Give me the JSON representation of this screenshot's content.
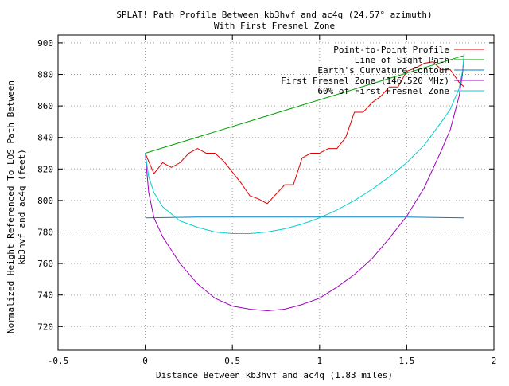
{
  "chart_data": {
    "type": "line",
    "title": "SPLAT! Path Profile Between kb3hvf and ac4q (24.57° azimuth)",
    "subtitle": "With First Fresnel Zone",
    "xlabel": "Distance Between kb3hvf and ac4q (1.83 miles)",
    "ylabel_line1": "Normalized Height Referenced To LOS Path Between",
    "ylabel_line2": "kb3hvf and ac4q (feet)",
    "xlim": [
      -0.5,
      2
    ],
    "ylim": [
      705,
      905
    ],
    "x_ticks": [
      -0.5,
      0,
      0.5,
      1,
      1.5,
      2
    ],
    "x_tick_labels": [
      "-0.5",
      "0",
      "0.5",
      "1",
      "1.5",
      "2"
    ],
    "y_ticks": [
      720,
      740,
      760,
      780,
      800,
      820,
      840,
      860,
      880,
      900
    ],
    "y_tick_labels": [
      "720",
      "740",
      "760",
      "780",
      "800",
      "820",
      "840",
      "860",
      "880",
      "900"
    ],
    "grid": true,
    "legend_position": "top-right",
    "series": [
      {
        "name": "Point-to-Point Profile",
        "color": "#e00000",
        "x": [
          0,
          0.05,
          0.1,
          0.15,
          0.2,
          0.25,
          0.3,
          0.35,
          0.4,
          0.45,
          0.5,
          0.55,
          0.6,
          0.65,
          0.7,
          0.75,
          0.8,
          0.85,
          0.9,
          0.95,
          1.0,
          1.05,
          1.1,
          1.15,
          1.2,
          1.25,
          1.3,
          1.35,
          1.4,
          1.45,
          1.5,
          1.55,
          1.6,
          1.65,
          1.7,
          1.75,
          1.8,
          1.83
        ],
        "y": [
          830,
          817,
          824,
          821,
          824,
          830,
          833,
          830,
          830,
          825,
          818,
          811,
          803,
          801,
          798,
          804,
          810,
          810,
          827,
          830,
          830,
          833,
          833,
          840,
          856,
          856,
          862,
          866,
          872,
          872,
          882,
          884,
          887,
          888,
          883,
          883,
          875,
          872
        ]
      },
      {
        "name": "Line of Sight Path",
        "color": "#00a000",
        "x": [
          0,
          1.83
        ],
        "y": [
          830,
          892
        ]
      },
      {
        "name": "Earth's Curvature Contour",
        "color": "#0080c0",
        "x": [
          0,
          0.3,
          0.6,
          0.9,
          1.2,
          1.5,
          1.83
        ],
        "y": [
          789,
          789.5,
          789.5,
          789.5,
          789.5,
          789.5,
          789
        ]
      },
      {
        "name": "First Fresnel Zone (146.520 MHz)",
        "color": "#a000c0",
        "x": [
          0,
          0.02,
          0.05,
          0.1,
          0.2,
          0.3,
          0.4,
          0.5,
          0.6,
          0.7,
          0.8,
          0.9,
          1.0,
          1.1,
          1.2,
          1.3,
          1.4,
          1.5,
          1.6,
          1.7,
          1.75,
          1.8,
          1.82,
          1.83
        ],
        "y": [
          830,
          805,
          789,
          777,
          760,
          747,
          738,
          733,
          731,
          730,
          731,
          734,
          738,
          745,
          753,
          763,
          776,
          790,
          808,
          832,
          845,
          866,
          880,
          893
        ]
      },
      {
        "name": "60% of First Fresnel Zone",
        "color": "#00d0d0",
        "x": [
          0,
          0.02,
          0.05,
          0.1,
          0.2,
          0.3,
          0.4,
          0.5,
          0.6,
          0.7,
          0.8,
          0.9,
          1.0,
          1.1,
          1.2,
          1.3,
          1.4,
          1.5,
          1.6,
          1.7,
          1.75,
          1.8,
          1.82,
          1.83
        ],
        "y": [
          830,
          815,
          805,
          796,
          787,
          783,
          780,
          779,
          779,
          780,
          782,
          785,
          789,
          794,
          800,
          807,
          815,
          824,
          835,
          850,
          858,
          871,
          882,
          893
        ]
      }
    ]
  }
}
